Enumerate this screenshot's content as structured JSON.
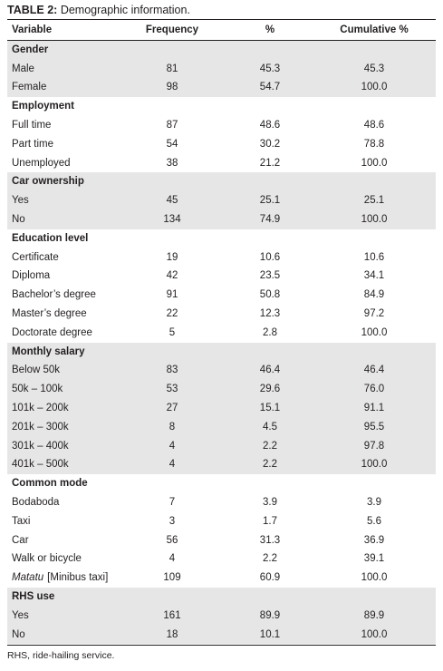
{
  "title_label": "TABLE 2:",
  "title_text": "Demographic information.",
  "table": {
    "header": [
      "Variable",
      "Frequency",
      "%",
      "Cumulative %"
    ],
    "sections": [
      {
        "title": "Gender",
        "rows": [
          [
            "Male",
            "81",
            "45.3",
            "45.3"
          ],
          [
            "Female",
            "98",
            "54.7",
            "100.0"
          ]
        ]
      },
      {
        "title": "Employment",
        "rows": [
          [
            "Full time",
            "87",
            "48.6",
            "48.6"
          ],
          [
            "Part time",
            "54",
            "30.2",
            "78.8"
          ],
          [
            "Unemployed",
            "38",
            "21.2",
            "100.0"
          ]
        ]
      },
      {
        "title": "Car ownership",
        "rows": [
          [
            "Yes",
            "45",
            "25.1",
            "25.1"
          ],
          [
            "No",
            "134",
            "74.9",
            "100.0"
          ]
        ]
      },
      {
        "title": "Education level",
        "rows": [
          [
            "Certificate",
            "19",
            "10.6",
            "10.6"
          ],
          [
            "Diploma",
            "42",
            "23.5",
            "34.1"
          ],
          [
            "Bachelor’s degree",
            "91",
            "50.8",
            "84.9"
          ],
          [
            "Master’s degree",
            "22",
            "12.3",
            "97.2"
          ],
          [
            "Doctorate degree",
            "5",
            "2.8",
            "100.0"
          ]
        ]
      },
      {
        "title": "Monthly salary",
        "rows": [
          [
            "Below 50k",
            "83",
            "46.4",
            "46.4"
          ],
          [
            "50k – 100k",
            "53",
            "29.6",
            "76.0"
          ],
          [
            "101k – 200k",
            "27",
            "15.1",
            "91.1"
          ],
          [
            "201k – 300k",
            "8",
            "4.5",
            "95.5"
          ],
          [
            "301k – 400k",
            "4",
            "2.2",
            "97.8"
          ],
          [
            "401k – 500k",
            "4",
            "2.2",
            "100.0"
          ]
        ]
      },
      {
        "title": "Common mode",
        "rows": [
          [
            "Bodaboda",
            "7",
            "3.9",
            "3.9"
          ],
          [
            "Taxi",
            "3",
            "1.7",
            "5.6"
          ],
          [
            "Car",
            "56",
            "31.3",
            "36.9"
          ],
          [
            "Walk or bicycle",
            "4",
            "2.2",
            "39.1"
          ],
          [
            {
              "italic": "Matatu",
              "text": "[Minibus taxi]"
            },
            "109",
            "60.9",
            "100.0"
          ]
        ]
      },
      {
        "title": "RHS use",
        "rows": [
          [
            "Yes",
            "161",
            "89.9",
            "89.9"
          ],
          [
            "No",
            "18",
            "10.1",
            "100.0"
          ]
        ]
      }
    ]
  },
  "footnote": "RHS, ride-hailing service."
}
